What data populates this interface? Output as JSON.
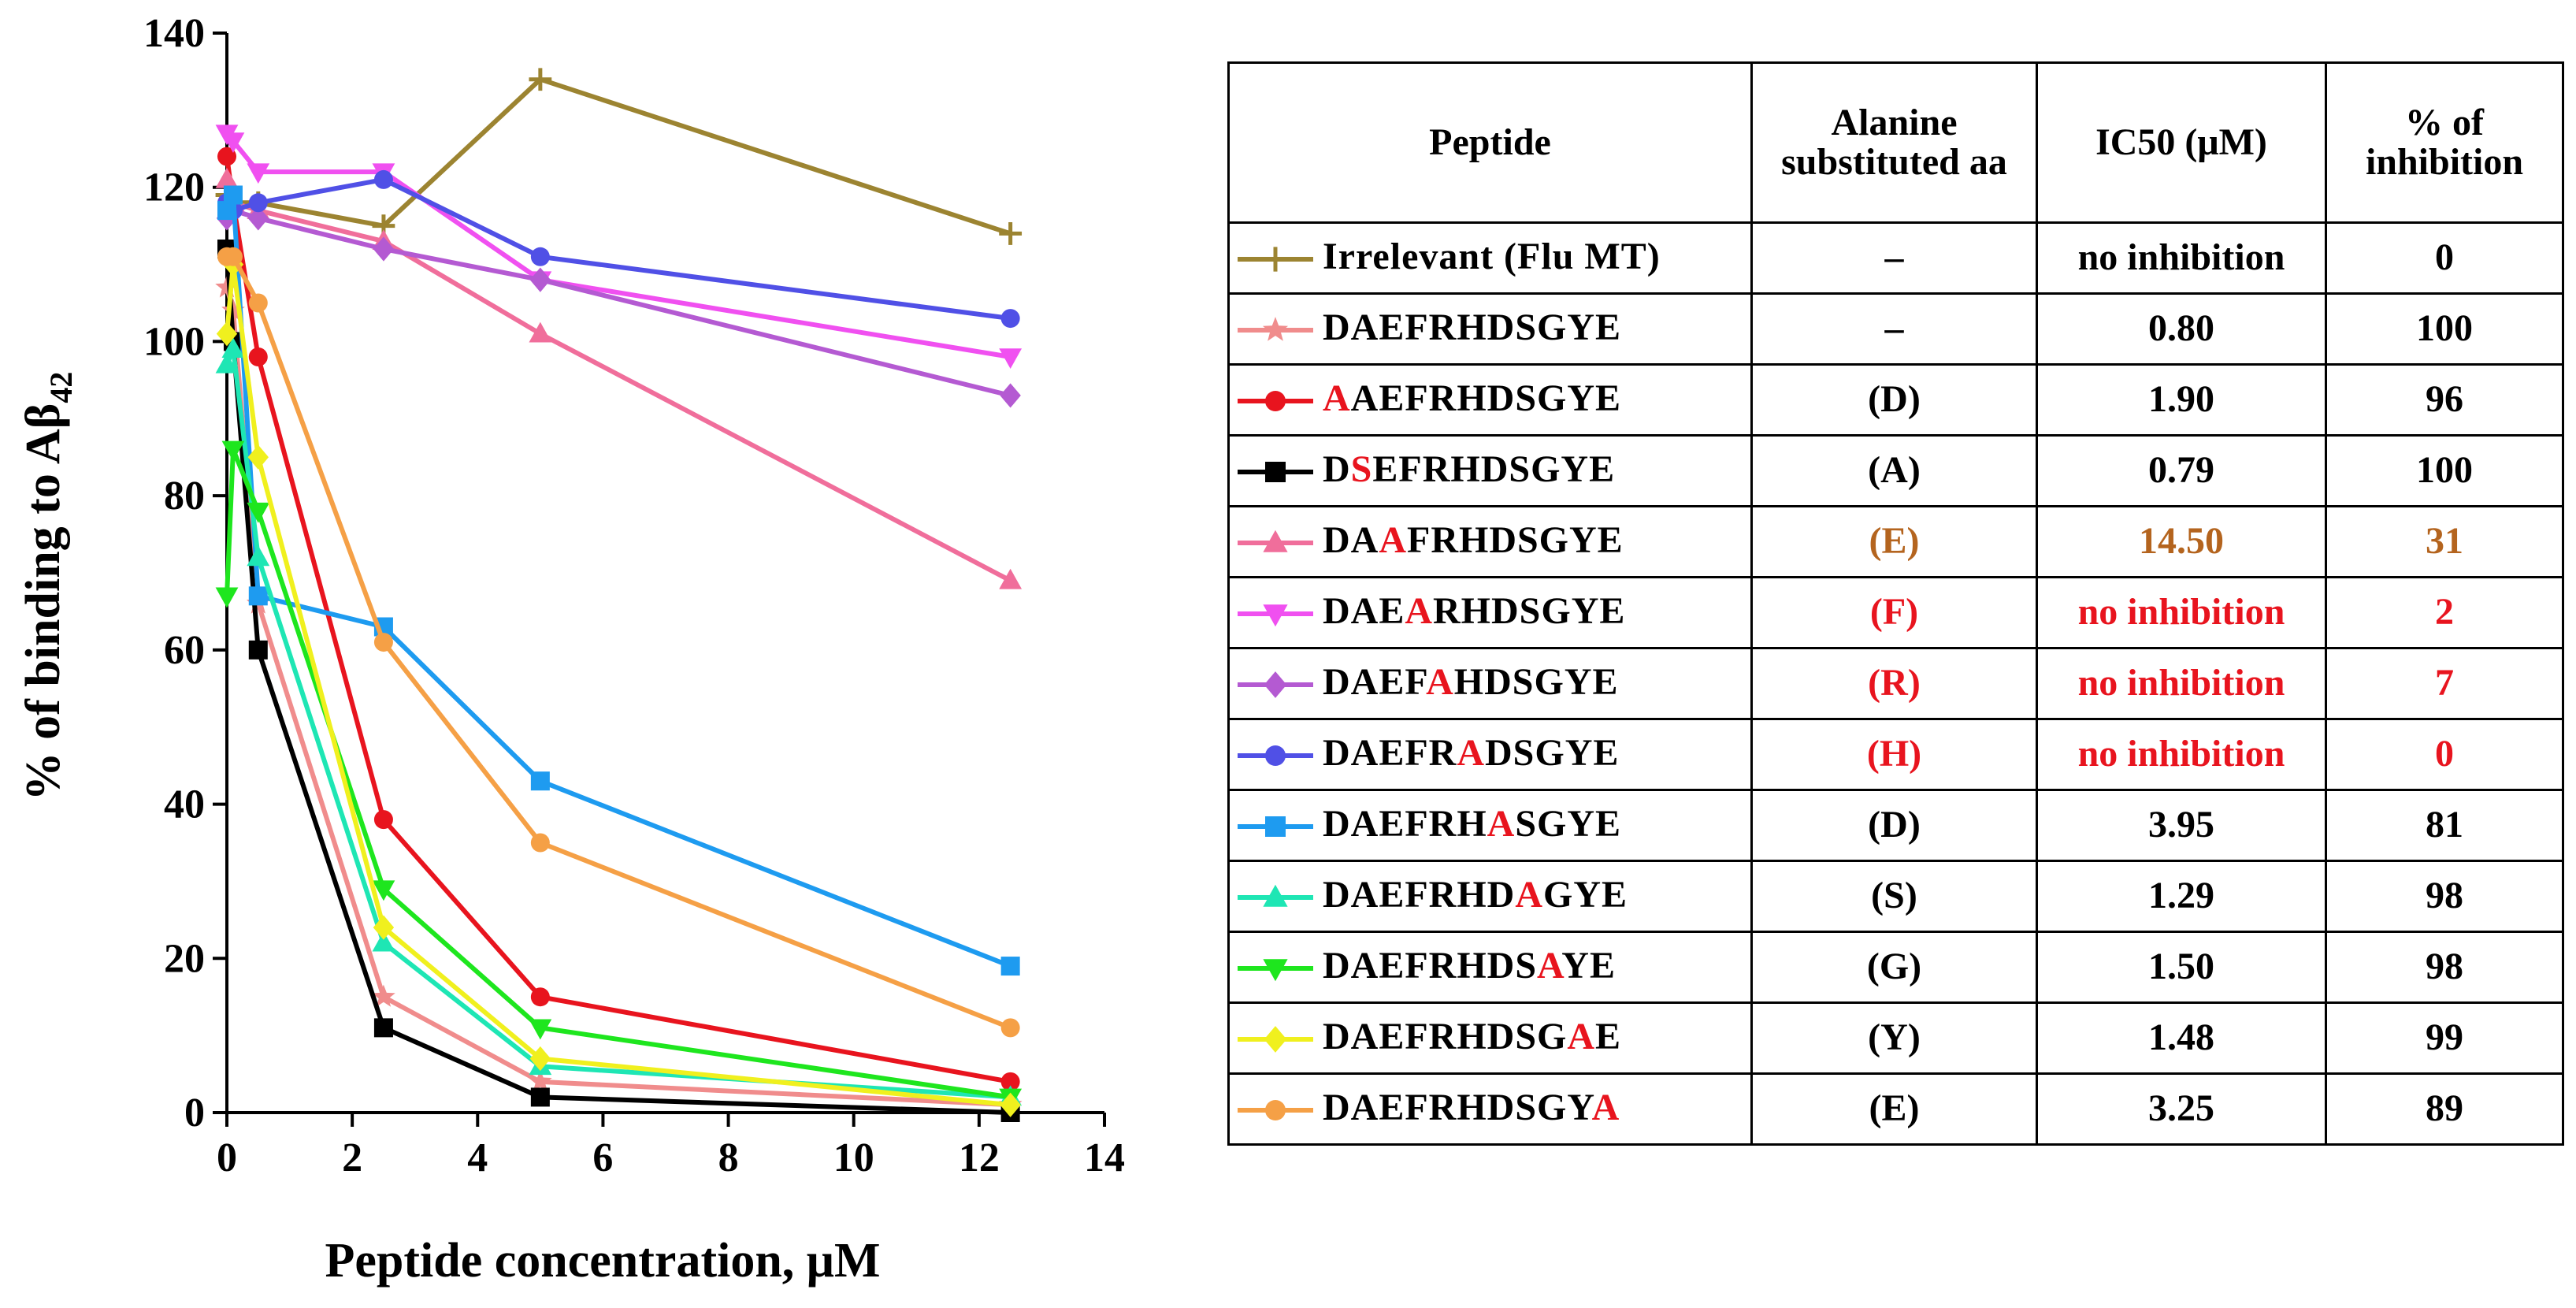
{
  "chart_data": {
    "type": "line",
    "xlabel": "Peptide concentration, μM",
    "ylabel_text": "% of binding to Aβ",
    "ylabel_subscript": "42",
    "xlim": [
      0,
      14
    ],
    "ylim": [
      0,
      140
    ],
    "x_ticks": [
      "0",
      "2",
      "4",
      "6",
      "8",
      "10",
      "12",
      "14"
    ],
    "y_ticks": [
      "0",
      "20",
      "40",
      "60",
      "80",
      "100",
      "120",
      "140"
    ],
    "grid": false,
    "series": [
      {
        "name": "Irrelevant (Flu MT)",
        "color": "#9C8431",
        "marker": "plus",
        "x": [
          0,
          0.1,
          0.5,
          2.5,
          5,
          12.5
        ],
        "y": [
          119,
          118,
          118,
          115,
          134,
          114
        ]
      },
      {
        "name": "DAEFRHDSGYE",
        "color": "#F08C8C",
        "marker": "star",
        "x": [
          0,
          0.1,
          0.5,
          2.5,
          5,
          12.5
        ],
        "y": [
          107,
          104,
          66,
          15,
          4,
          1
        ]
      },
      {
        "name": "AAEFRHDSGYE",
        "color": "#E8141E",
        "marker": "circle",
        "x": [
          0,
          0.1,
          0.5,
          2.5,
          5,
          12.5
        ],
        "y": [
          124,
          118,
          98,
          38,
          15,
          4
        ]
      },
      {
        "name": "DSEFRHDSGYE",
        "color": "#000000",
        "marker": "square",
        "x": [
          0,
          0.1,
          0.5,
          2.5,
          5,
          12.5
        ],
        "y": [
          112,
          100,
          60,
          11,
          2,
          0
        ]
      },
      {
        "name": "DAAFRHDSGYE",
        "color": "#F06E9B",
        "marker": "triangle-up",
        "x": [
          0,
          0.1,
          0.5,
          2.5,
          5,
          12.5
        ],
        "y": [
          121,
          118,
          117,
          113,
          101,
          69
        ]
      },
      {
        "name": "DAEARHDSGYE",
        "color": "#F050F0",
        "marker": "triangle-down",
        "x": [
          0,
          0.1,
          0.5,
          2.5,
          5,
          12.5
        ],
        "y": [
          127,
          126,
          122,
          122,
          108,
          98
        ]
      },
      {
        "name": "DAEFAHDSGYE",
        "color": "#B45AD2",
        "marker": "diamond",
        "x": [
          0,
          0.1,
          0.5,
          2.5,
          5,
          12.5
        ],
        "y": [
          116,
          117,
          116,
          112,
          108,
          93
        ]
      },
      {
        "name": "DAEFRADSGYE",
        "color": "#5050E6",
        "marker": "circle",
        "x": [
          0,
          0.1,
          0.5,
          2.5,
          5,
          12.5
        ],
        "y": [
          118,
          117,
          118,
          121,
          111,
          103
        ]
      },
      {
        "name": "DAEFRHASGYE",
        "color": "#1E9BF0",
        "marker": "square",
        "x": [
          0,
          0.1,
          0.5,
          2.5,
          5,
          12.5
        ],
        "y": [
          117,
          119,
          67,
          63,
          43,
          19
        ]
      },
      {
        "name": "DAEFRHDAGYE",
        "color": "#1EE6B4",
        "marker": "triangle-up",
        "x": [
          0,
          0.1,
          0.5,
          2.5,
          5,
          12.5
        ],
        "y": [
          97,
          99,
          72,
          22,
          6,
          2
        ]
      },
      {
        "name": "DAEFRHDSAYE",
        "color": "#1EE61E",
        "marker": "triangle-down",
        "x": [
          0,
          0.1,
          0.5,
          2.5,
          5,
          12.5
        ],
        "y": [
          67,
          86,
          78,
          29,
          11,
          2
        ]
      },
      {
        "name": "DAEFRHDSGAE",
        "color": "#F0F01E",
        "marker": "diamond",
        "x": [
          0,
          0.1,
          0.5,
          2.5,
          5,
          12.5
        ],
        "y": [
          101,
          110,
          85,
          24,
          7,
          1
        ]
      },
      {
        "name": "DAEFRHDSGYA",
        "color": "#F5A046",
        "marker": "circle",
        "x": [
          0,
          0.1,
          0.5,
          2.5,
          5,
          12.5
        ],
        "y": [
          111,
          111,
          105,
          61,
          35,
          11
        ]
      }
    ]
  },
  "table": {
    "headers": [
      "Peptide",
      "Alanine substituted aa",
      "IC50 (μM)",
      "% of inhibition"
    ],
    "rows": [
      {
        "pre": "Irrelevant (Flu MT)",
        "sub": "",
        "post": "",
        "aa": "–",
        "ic50": "no inhibition",
        "inhib": "0",
        "value_color": "#000000"
      },
      {
        "pre": "DAEFRHDSGYE",
        "sub": "",
        "post": "",
        "aa": "–",
        "ic50": "0.80",
        "inhib": "100",
        "value_color": "#000000"
      },
      {
        "pre": "",
        "sub": "A",
        "post": "AEFRHDSGYE",
        "aa": "(D)",
        "ic50": "1.90",
        "inhib": "96",
        "value_color": "#000000"
      },
      {
        "pre": "D",
        "sub": "S",
        "post": "EFRHDSGYE",
        "aa": "(A)",
        "ic50": "0.79",
        "inhib": "100",
        "value_color": "#000000"
      },
      {
        "pre": "DA",
        "sub": "A",
        "post": "FRHDSGYE",
        "aa": "(E)",
        "ic50": "14.50",
        "inhib": "31",
        "value_color": "#B4641E"
      },
      {
        "pre": "DAE",
        "sub": "A",
        "post": "RHDSGYE",
        "aa": "(F)",
        "ic50": "no inhibition",
        "inhib": "2",
        "value_color": "#E8141E"
      },
      {
        "pre": "DAEF",
        "sub": "A",
        "post": "HDSGYE",
        "aa": "(R)",
        "ic50": "no inhibition",
        "inhib": "7",
        "value_color": "#E8141E"
      },
      {
        "pre": "DAEFR",
        "sub": "A",
        "post": "DSGYE",
        "aa": "(H)",
        "ic50": "no inhibition",
        "inhib": "0",
        "value_color": "#E8141E"
      },
      {
        "pre": "DAEFRH",
        "sub": "A",
        "post": "SGYE",
        "aa": "(D)",
        "ic50": "3.95",
        "inhib": "81",
        "value_color": "#000000"
      },
      {
        "pre": "DAEFRHD",
        "sub": "A",
        "post": "GYE",
        "aa": "(S)",
        "ic50": "1.29",
        "inhib": "98",
        "value_color": "#000000"
      },
      {
        "pre": "DAEFRHDS",
        "sub": "A",
        "post": "YE",
        "aa": "(G)",
        "ic50": "1.50",
        "inhib": "98",
        "value_color": "#000000"
      },
      {
        "pre": "DAEFRHDSG",
        "sub": "A",
        "post": "E",
        "aa": "(Y)",
        "ic50": "1.48",
        "inhib": "99",
        "value_color": "#000000"
      },
      {
        "pre": "DAEFRHDSGY",
        "sub": "A",
        "post": "",
        "aa": "(E)",
        "ic50": "3.25",
        "inhib": "89",
        "value_color": "#000000"
      }
    ]
  },
  "substitution_color": "#E8141E"
}
